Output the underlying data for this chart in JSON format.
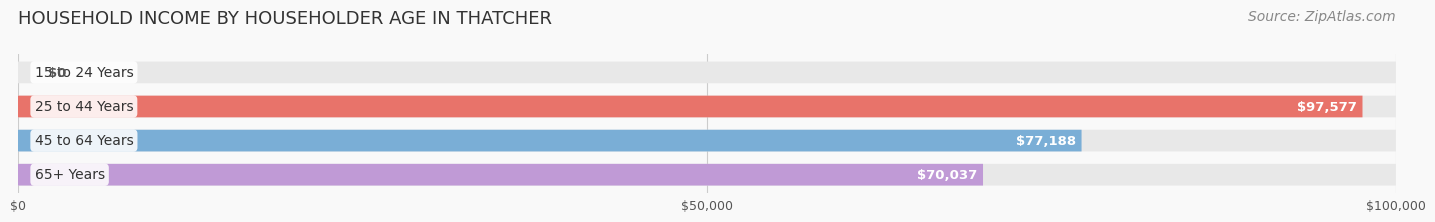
{
  "title": "HOUSEHOLD INCOME BY HOUSEHOLDER AGE IN THATCHER",
  "source": "Source: ZipAtlas.com",
  "categories": [
    "15 to 24 Years",
    "25 to 44 Years",
    "45 to 64 Years",
    "65+ Years"
  ],
  "values": [
    0,
    97577,
    77188,
    70037
  ],
  "bar_colors": [
    "#e8c99a",
    "#e8736a",
    "#7aaed6",
    "#c09ad6"
  ],
  "bar_bg_color": "#e8e8e8",
  "value_labels": [
    "$0",
    "$97,577",
    "$77,188",
    "$70,037"
  ],
  "x_ticks": [
    0,
    50000,
    100000
  ],
  "x_tick_labels": [
    "$0",
    "$50,000",
    "$100,000"
  ],
  "xlim": [
    0,
    100000
  ],
  "title_fontsize": 13,
  "source_fontsize": 10,
  "label_fontsize": 10,
  "value_fontsize": 9.5,
  "background_color": "#f9f9f9",
  "label_bg_color": "#ffffff",
  "grid_color": "#cccccc"
}
